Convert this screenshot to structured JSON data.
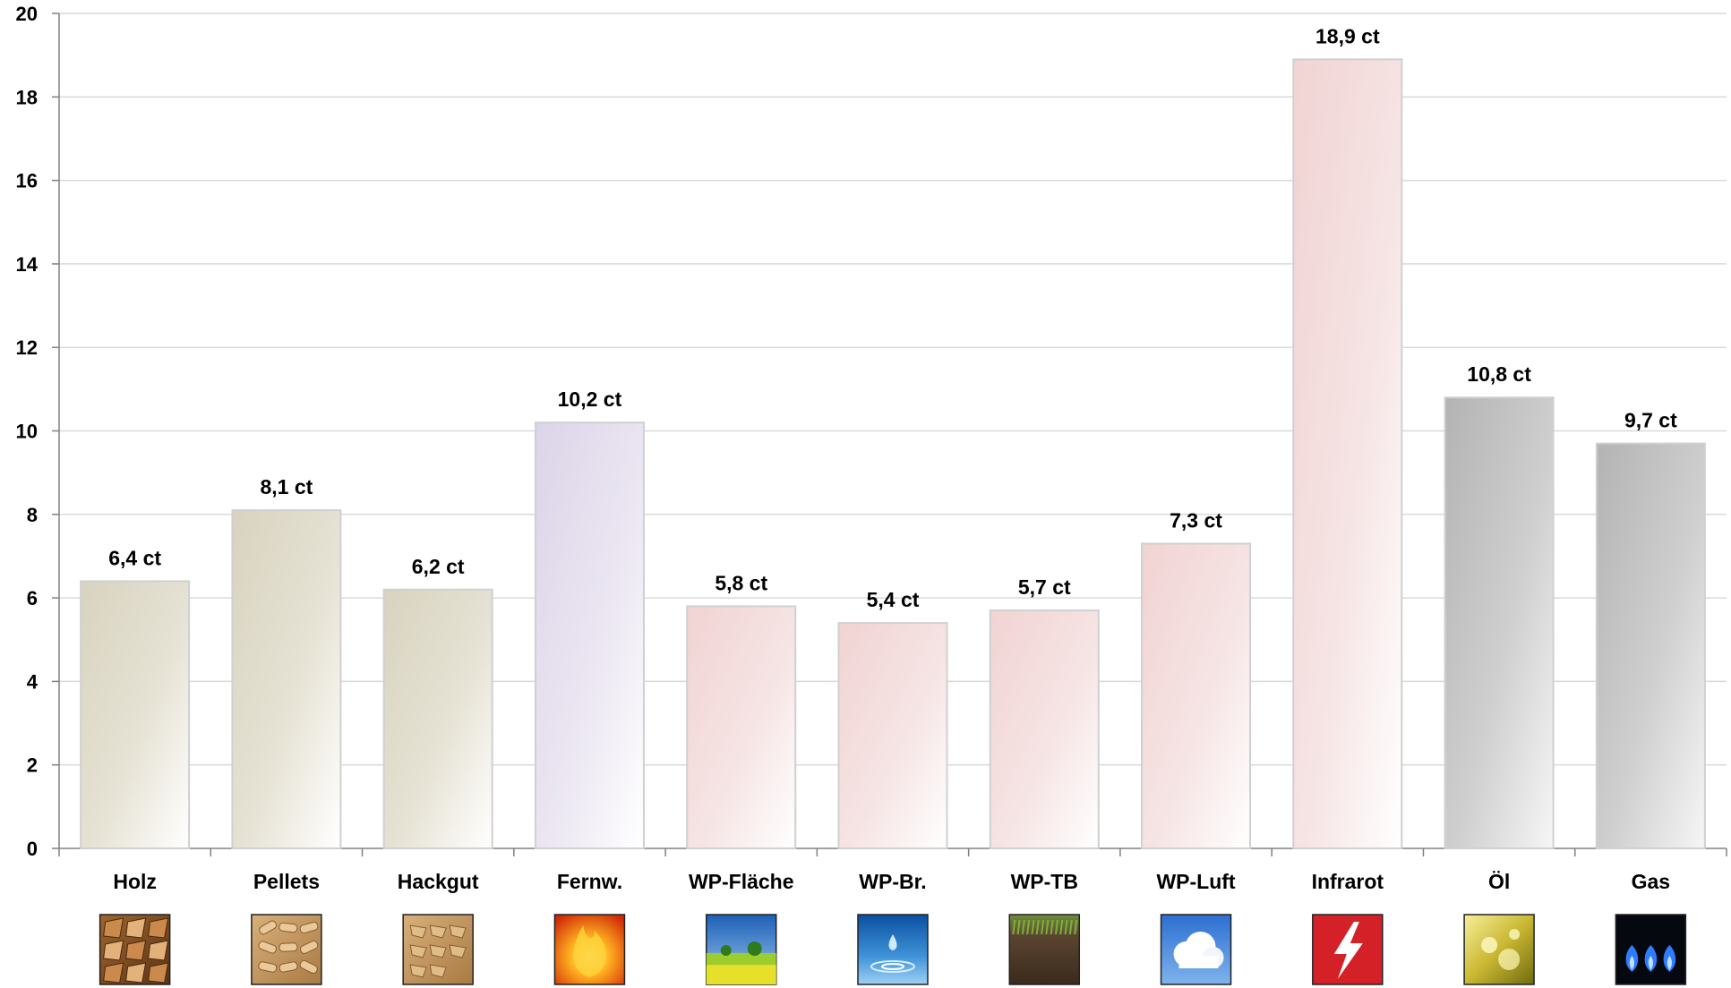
{
  "chart_data": {
    "type": "bar",
    "title": "",
    "xlabel": "",
    "ylabel": "",
    "ylim": [
      0,
      20
    ],
    "yticks": [
      0,
      2,
      4,
      6,
      8,
      10,
      12,
      14,
      16,
      18,
      20
    ],
    "grid": true,
    "categories": [
      "Holz",
      "Pellets",
      "Hackgut",
      "Fernw.",
      "WP-Fläche",
      "WP-Br.",
      "WP-TB",
      "WP-Luft",
      "Infrarot",
      "Öl",
      "Gas"
    ],
    "values": [
      6.4,
      8.1,
      6.2,
      10.2,
      5.8,
      5.4,
      5.7,
      7.3,
      18.9,
      10.8,
      9.7
    ],
    "value_labels": [
      "6,4 ct",
      "8,1 ct",
      "6,2 ct",
      "10,2 ct",
      "5,8 ct",
      "5,4 ct",
      "5,7 ct",
      "7,3 ct",
      "18,9 ct",
      "10,8 ct",
      "9,7 ct"
    ],
    "bar_colors": [
      "#d6d1bd",
      "#d6d1bd",
      "#d6d1bd",
      "#dcd5e8",
      "#f1d5d5",
      "#f1d5d5",
      "#f1d5d5",
      "#f1d5d5",
      "#f1d5d5",
      "#b9b9b9",
      "#b9b9b9"
    ],
    "icons": [
      "firewood-icon",
      "wood-pellets-icon",
      "wood-chips-icon",
      "flame-icon",
      "meadow-icon",
      "water-drop-icon",
      "soil-icon",
      "cloud-sky-icon",
      "lightning-icon",
      "oil-icon",
      "gas-flame-icon"
    ]
  }
}
